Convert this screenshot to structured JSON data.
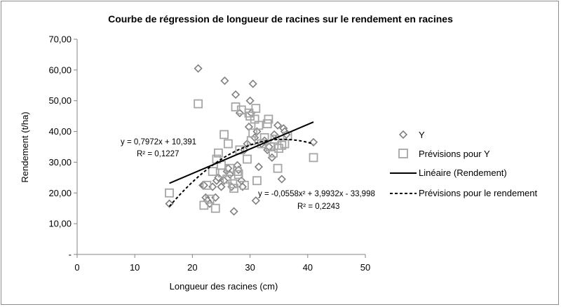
{
  "chart_data": {
    "type": "scatter",
    "title": "Courbe de régression de longueur de racines sur le rendement en racines",
    "xlabel": "Longueur des racines (cm)",
    "ylabel": "Rendement (t/ha)",
    "xlim": [
      0,
      50
    ],
    "ylim": [
      0,
      70
    ],
    "x_ticks": [
      "0",
      "10",
      "20",
      "30",
      "40",
      "50"
    ],
    "y_ticks": [
      "-",
      "10,00",
      "20,00",
      "30,00",
      "40,00",
      "50,00",
      "60,00",
      "70,00"
    ],
    "grid": false,
    "legend_position": "right",
    "series": [
      {
        "name": "Y",
        "marker": "diamond",
        "color": "#7f7f7f",
        "points": [
          [
            16,
            16.5
          ],
          [
            21,
            60.5
          ],
          [
            21.8,
            22.5
          ],
          [
            22,
            22.5
          ],
          [
            22.3,
            18.5
          ],
          [
            22.6,
            17.5
          ],
          [
            23,
            16.5
          ],
          [
            23.5,
            22
          ],
          [
            24,
            18.5
          ],
          [
            24.2,
            24
          ],
          [
            24.5,
            25
          ],
          [
            25,
            22
          ],
          [
            25.5,
            24
          ],
          [
            25.6,
            56.5
          ],
          [
            26,
            27
          ],
          [
            26.2,
            28
          ],
          [
            26.5,
            26
          ],
          [
            26.8,
            22
          ],
          [
            27.2,
            14
          ],
          [
            27.5,
            52
          ],
          [
            27.8,
            29
          ],
          [
            28,
            27.5
          ],
          [
            28.2,
            46
          ],
          [
            28.5,
            24
          ],
          [
            28.7,
            22
          ],
          [
            29,
            34
          ],
          [
            29.5,
            36
          ],
          [
            29.8,
            41.5
          ],
          [
            30,
            50
          ],
          [
            30.2,
            46
          ],
          [
            30.5,
            55.5
          ],
          [
            30.8,
            38
          ],
          [
            31,
            17.5
          ],
          [
            31.2,
            40
          ],
          [
            31.5,
            28.5
          ],
          [
            32,
            36
          ],
          [
            32.5,
            37
          ],
          [
            33,
            34
          ],
          [
            33.3,
            35
          ],
          [
            33.8,
            31.5
          ],
          [
            34.2,
            39
          ],
          [
            34.8,
            42
          ],
          [
            35.5,
            24.5
          ],
          [
            35.8,
            41
          ],
          [
            36,
            40
          ],
          [
            36.3,
            39
          ],
          [
            41,
            36.5
          ]
        ]
      },
      {
        "name": "Prévisions pour Y",
        "marker": "square",
        "color": "#a6a6a6",
        "points": [
          [
            16,
            20
          ],
          [
            21,
            49
          ],
          [
            22,
            16
          ],
          [
            22.5,
            22.5
          ],
          [
            23,
            18
          ],
          [
            23.5,
            27
          ],
          [
            24,
            15
          ],
          [
            24.2,
            31
          ],
          [
            24.5,
            33
          ],
          [
            25,
            29
          ],
          [
            25.2,
            26.5
          ],
          [
            25.5,
            39
          ],
          [
            26,
            24.5
          ],
          [
            26.2,
            36
          ],
          [
            26.5,
            28
          ],
          [
            27,
            23
          ],
          [
            27.2,
            21.5
          ],
          [
            27.5,
            48
          ],
          [
            27.8,
            27
          ],
          [
            28,
            26
          ],
          [
            28.2,
            34
          ],
          [
            28.5,
            47
          ],
          [
            29,
            22.5
          ],
          [
            29.5,
            31
          ],
          [
            29.8,
            46
          ],
          [
            30,
            45
          ],
          [
            30.2,
            37
          ],
          [
            30.5,
            39.5
          ],
          [
            30.8,
            44
          ],
          [
            31,
            47.5
          ],
          [
            31.2,
            24
          ],
          [
            31.5,
            42
          ],
          [
            32,
            36
          ],
          [
            32.5,
            38
          ],
          [
            33,
            42.5
          ],
          [
            33.2,
            44
          ],
          [
            33.5,
            35
          ],
          [
            34,
            33
          ],
          [
            34.3,
            37.5
          ],
          [
            34.8,
            28
          ],
          [
            35,
            34.5
          ],
          [
            35.5,
            35.5
          ],
          [
            36,
            36
          ],
          [
            36.5,
            38.5
          ],
          [
            41,
            31.5
          ]
        ]
      },
      {
        "name": "Linéaire (Rendement)",
        "type": "line",
        "style": "solid",
        "color": "#000000",
        "equation": {
          "slope": 0.7972,
          "intercept": 10.391
        },
        "x_range": [
          16,
          41
        ]
      },
      {
        "name": "Prévisions pour le rendement",
        "type": "line",
        "style": "dashed",
        "color": "#000000",
        "equation": {
          "a": -0.0558,
          "b": 3.9932,
          "c": -33.998
        },
        "x_range": [
          16,
          41
        ]
      }
    ],
    "annotations": [
      {
        "line1": "y = 0,7972x + 10,391",
        "line2": "R² = 0,1227"
      },
      {
        "line1": "y = -0,0558x² + 3,9932x - 33,998",
        "line2": "R² = 0,2243"
      }
    ],
    "legend": [
      {
        "label": "Y",
        "marker": "diamond"
      },
      {
        "label": "Prévisions pour Y",
        "marker": "square"
      },
      {
        "label": "Linéaire (Rendement)",
        "marker": "solid-line"
      },
      {
        "label": "Prévisions pour le rendement",
        "marker": "dashed-line"
      }
    ]
  }
}
